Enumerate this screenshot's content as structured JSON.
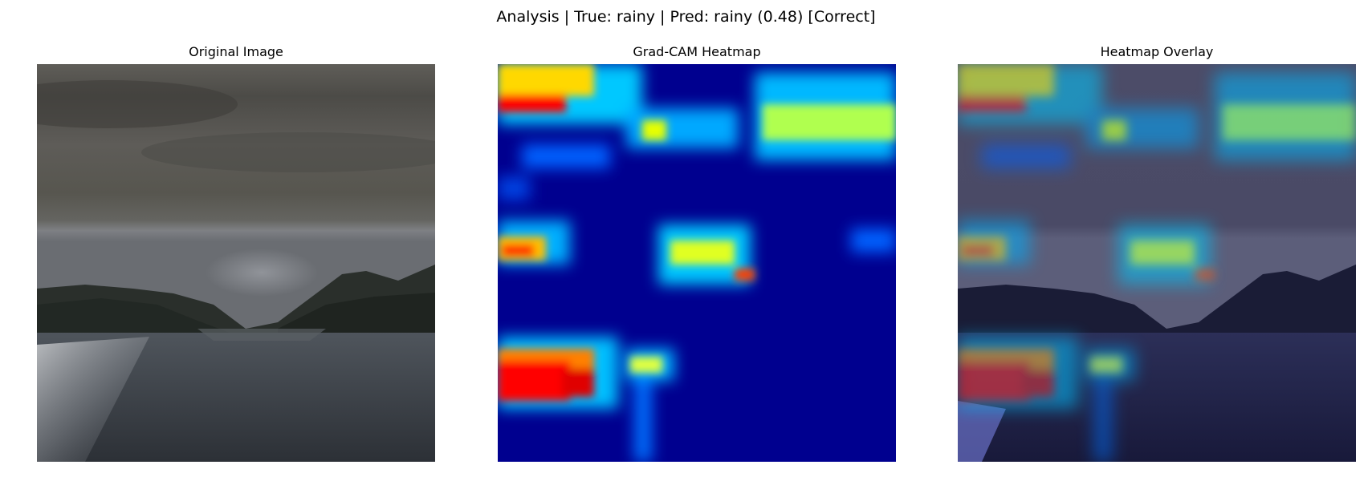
{
  "figure": {
    "title": "Analysis | True: rainy | Pred: rainy (0.48) [Correct]"
  },
  "panels": [
    {
      "title": "Original Image",
      "image": "storm-over-lake-photo"
    },
    {
      "title": "Grad-CAM Heatmap",
      "image": "gradcam-heatmap",
      "colormap": "jet"
    },
    {
      "title": "Heatmap Overlay",
      "image": "heatmap-overlay-photo"
    }
  ],
  "colors": {
    "background": "#ffffff",
    "heatmap_low": "#00008f",
    "heatmap_high": "#ff0000"
  }
}
